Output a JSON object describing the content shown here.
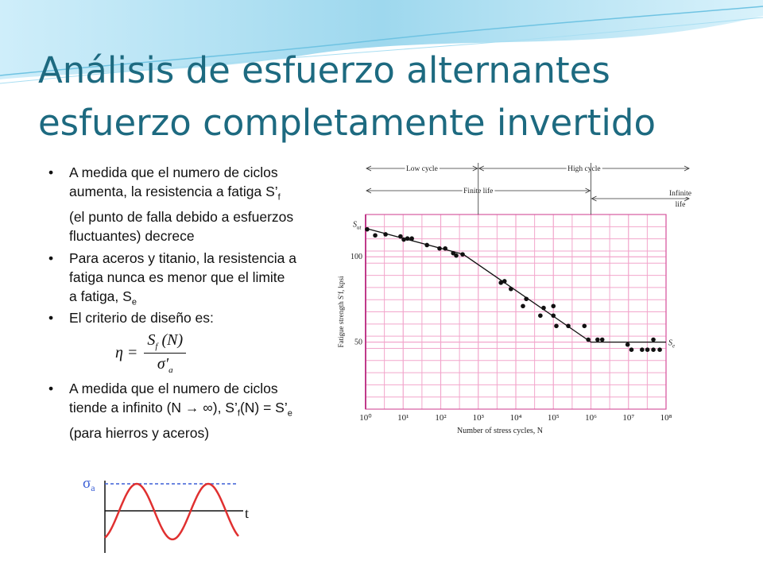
{
  "title": [
    "Análisis de esfuerzo alternantes",
    "esfuerzo completamente invertido"
  ],
  "bullets": [
    {
      "lines": [
        [
          "A medida que el numero de ciclos"
        ],
        [
          "aumenta, la resistencia a fatiga S’",
          {
            "sub": "f"
          }
        ],
        [
          "(el punto de falla debido a esfuerzos"
        ],
        [
          "fluctuantes) decrece"
        ]
      ]
    },
    {
      "lines": [
        [
          "Para aceros y  titanio, la resistencia a"
        ],
        [
          "fatiga nunca es menor que el limite"
        ],
        [
          "a fatiga, S",
          {
            "sub": "e"
          }
        ]
      ]
    },
    {
      "lines": [
        [
          "El criterio de diseño es:"
        ]
      ]
    },
    {
      "lines": [
        [
          "A medida que el numero de ciclos"
        ],
        [
          "tiende a infinito (N → ∞), S’",
          {
            "sub": "f"
          },
          "(N) = S’",
          {
            "sub": "e"
          }
        ],
        [
          "(para hierros y aceros)"
        ]
      ]
    }
  ],
  "formula": {
    "lhs": "η =",
    "numerator": [
      "S",
      {
        "sub": "f"
      },
      " (N)"
    ],
    "denominator": [
      "σ′",
      {
        "sub": "a"
      }
    ]
  },
  "chart_data": {
    "type": "scatter",
    "x_label": "Number of stress cycles, N",
    "y_label": "Fatigue strength S′f, kpsi",
    "xscale": "log",
    "yscale": "log",
    "xlim": [
      1,
      100000000
    ],
    "ylim": [
      29,
      141
    ],
    "xticks": [
      {
        "value": 1,
        "label": "10⁰"
      },
      {
        "value": 10,
        "label": "10¹"
      },
      {
        "value": 100,
        "label": "10²"
      },
      {
        "value": 1000,
        "label": "10³"
      },
      {
        "value": 10000,
        "label": "10⁴"
      },
      {
        "value": 100000,
        "label": "10⁵"
      },
      {
        "value": 1000000,
        "label": "10⁶"
      },
      {
        "value": 10000000,
        "label": "10⁷"
      },
      {
        "value": 100000000,
        "label": "10⁸"
      }
    ],
    "yticks": [
      50,
      100
    ],
    "grid": true,
    "color": "#111111",
    "grid_color": "#f2a6cc",
    "points": {
      "x": [
        1.1,
        1.8,
        3.4,
        8.5,
        10.4,
        13,
        17,
        43,
        93,
        132,
        215,
        259,
        382,
        4000,
        5000,
        7400,
        15500,
        19000,
        45000,
        55000,
        100000,
        100000,
        120000,
        250000,
        670000,
        850000,
        1500000,
        2000000,
        9500000,
        12000000,
        23000000,
        32000000,
        46000000,
        46000000,
        68000000
      ],
      "y": [
        125,
        119,
        120,
        118,
        115,
        116,
        116,
        110,
        107,
        107,
        103,
        101,
        102,
        81,
        82,
        77,
        67,
        71,
        62,
        66,
        67,
        62,
        57,
        57,
        57,
        51,
        51,
        51,
        49,
        47,
        47,
        47,
        51,
        47,
        47
      ]
    },
    "fit_line": {
      "x": [
        1,
        400,
        1000000,
        100000000
      ],
      "y": [
        126,
        102,
        50,
        50
      ]
    },
    "annotations": [
      {
        "text": "S",
        "sub": "ut",
        "y": 126
      },
      {
        "text": "S",
        "sub": "e",
        "y": 50
      }
    ],
    "regions": [
      {
        "label": "Low cycle",
        "from": 1,
        "to": 1000,
        "row": 0
      },
      {
        "label": "High cycle",
        "from": 1000,
        "to": 100000000,
        "row": 0
      },
      {
        "label": "Finite life",
        "from": 1,
        "to": 1000000,
        "row": 1
      },
      {
        "label": [
          "Infinite",
          "life"
        ],
        "from": 1000000,
        "to": 100000000,
        "row": 2
      }
    ]
  },
  "wave_diagram": {
    "y_label": "σ",
    "amplitude_label": [
      "σ",
      {
        "sub": "a"
      }
    ],
    "x_label": "t"
  }
}
